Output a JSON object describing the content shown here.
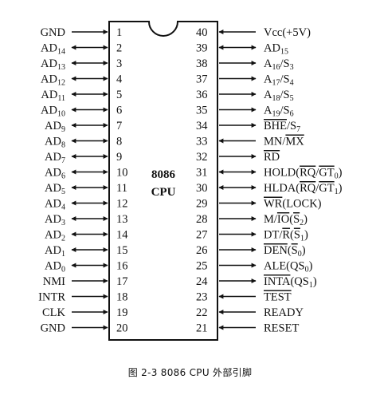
{
  "chip": {
    "line1": "8086",
    "line2": "CPU"
  },
  "left_pins": [
    {
      "num": "1",
      "dir": "in",
      "label": [
        {
          "t": "GND"
        }
      ]
    },
    {
      "num": "2",
      "dir": "bi",
      "label": [
        {
          "t": "AD"
        },
        {
          "t": "14",
          "s": "sub"
        }
      ]
    },
    {
      "num": "3",
      "dir": "bi",
      "label": [
        {
          "t": "AD"
        },
        {
          "t": "13",
          "s": "sub"
        }
      ]
    },
    {
      "num": "4",
      "dir": "bi",
      "label": [
        {
          "t": "AD"
        },
        {
          "t": "12",
          "s": "sub"
        }
      ]
    },
    {
      "num": "5",
      "dir": "bi",
      "label": [
        {
          "t": "AD"
        },
        {
          "t": "11",
          "s": "sub"
        }
      ]
    },
    {
      "num": "6",
      "dir": "bi",
      "label": [
        {
          "t": "AD"
        },
        {
          "t": "10",
          "s": "sub"
        }
      ]
    },
    {
      "num": "7",
      "dir": "bi",
      "label": [
        {
          "t": "AD"
        },
        {
          "t": "9",
          "s": "sub"
        }
      ]
    },
    {
      "num": "8",
      "dir": "bi",
      "label": [
        {
          "t": "AD"
        },
        {
          "t": "8",
          "s": "sub"
        }
      ]
    },
    {
      "num": "9",
      "dir": "bi",
      "label": [
        {
          "t": "AD"
        },
        {
          "t": "7",
          "s": "sub"
        }
      ]
    },
    {
      "num": "10",
      "dir": "bi",
      "label": [
        {
          "t": "AD"
        },
        {
          "t": "6",
          "s": "sub"
        }
      ]
    },
    {
      "num": "11",
      "dir": "bi",
      "label": [
        {
          "t": "AD"
        },
        {
          "t": "5",
          "s": "sub"
        }
      ]
    },
    {
      "num": "12",
      "dir": "bi",
      "label": [
        {
          "t": "AD"
        },
        {
          "t": "4",
          "s": "sub"
        }
      ]
    },
    {
      "num": "13",
      "dir": "bi",
      "label": [
        {
          "t": "AD"
        },
        {
          "t": "3",
          "s": "sub"
        }
      ]
    },
    {
      "num": "14",
      "dir": "bi",
      "label": [
        {
          "t": "AD"
        },
        {
          "t": "2",
          "s": "sub"
        }
      ]
    },
    {
      "num": "15",
      "dir": "bi",
      "label": [
        {
          "t": "AD"
        },
        {
          "t": "1",
          "s": "sub"
        }
      ]
    },
    {
      "num": "16",
      "dir": "bi",
      "label": [
        {
          "t": "AD"
        },
        {
          "t": "0",
          "s": "sub"
        }
      ]
    },
    {
      "num": "17",
      "dir": "in",
      "label": [
        {
          "t": "NMI"
        }
      ]
    },
    {
      "num": "18",
      "dir": "in",
      "label": [
        {
          "t": "INTR"
        }
      ]
    },
    {
      "num": "19",
      "dir": "in",
      "label": [
        {
          "t": "CLK"
        }
      ]
    },
    {
      "num": "20",
      "dir": "in",
      "label": [
        {
          "t": "GND"
        }
      ]
    }
  ],
  "right_pins": [
    {
      "num": "40",
      "dir": "in",
      "label": [
        {
          "t": "Vcc(+5V)"
        }
      ]
    },
    {
      "num": "39",
      "dir": "bi",
      "label": [
        {
          "t": "AD"
        },
        {
          "t": "15",
          "s": "sub"
        }
      ]
    },
    {
      "num": "38",
      "dir": "out",
      "label": [
        {
          "t": "A"
        },
        {
          "t": "16",
          "s": "sub"
        },
        {
          "t": "/S"
        },
        {
          "t": "3",
          "s": "sub"
        }
      ]
    },
    {
      "num": "37",
      "dir": "out",
      "label": [
        {
          "t": "A"
        },
        {
          "t": "17",
          "s": "sub"
        },
        {
          "t": "/S"
        },
        {
          "t": "4",
          "s": "sub"
        }
      ]
    },
    {
      "num": "36",
      "dir": "out",
      "label": [
        {
          "t": "A"
        },
        {
          "t": "18",
          "s": "sub"
        },
        {
          "t": "/S"
        },
        {
          "t": "5",
          "s": "sub"
        }
      ]
    },
    {
      "num": "35",
      "dir": "out",
      "label": [
        {
          "t": "A"
        },
        {
          "t": "19",
          "s": "sub"
        },
        {
          "t": "/S"
        },
        {
          "t": "6",
          "s": "sub"
        }
      ]
    },
    {
      "num": "34",
      "dir": "out",
      "label": [
        {
          "t": "BHE",
          "o": 1
        },
        {
          "t": "/S"
        },
        {
          "t": "7",
          "s": "sub"
        }
      ]
    },
    {
      "num": "33",
      "dir": "in",
      "label": [
        {
          "t": "MN/"
        },
        {
          "t": "MX",
          "o": 1
        }
      ]
    },
    {
      "num": "32",
      "dir": "out",
      "label": [
        {
          "t": "RD",
          "o": 1
        }
      ]
    },
    {
      "num": "31",
      "dir": "bi",
      "label": [
        {
          "t": "HOLD("
        },
        {
          "t": "RQ",
          "o": 1
        },
        {
          "t": "/"
        },
        {
          "t": "GT",
          "o": 1
        },
        {
          "t": "0",
          "s": "sub"
        },
        {
          "t": ")"
        }
      ]
    },
    {
      "num": "30",
      "dir": "bi",
      "label": [
        {
          "t": "HLDA("
        },
        {
          "t": "RQ",
          "o": 1
        },
        {
          "t": "/"
        },
        {
          "t": "GT",
          "o": 1
        },
        {
          "t": "1",
          "s": "sub"
        },
        {
          "t": ")"
        }
      ]
    },
    {
      "num": "29",
      "dir": "out",
      "label": [
        {
          "t": "WR",
          "o": 1
        },
        {
          "t": "(LOCK)"
        }
      ]
    },
    {
      "num": "28",
      "dir": "out",
      "label": [
        {
          "t": "M/"
        },
        {
          "t": "IO",
          "o": 1
        },
        {
          "t": "("
        },
        {
          "t": "S",
          "o": 1
        },
        {
          "t": "2",
          "s": "sub"
        },
        {
          "t": ")"
        }
      ]
    },
    {
      "num": "27",
      "dir": "out",
      "label": [
        {
          "t": "DT/"
        },
        {
          "t": "R",
          "o": 1
        },
        {
          "t": "("
        },
        {
          "t": "S",
          "o": 1
        },
        {
          "t": "1",
          "s": "sub"
        },
        {
          "t": ")"
        }
      ]
    },
    {
      "num": "26",
      "dir": "out",
      "label": [
        {
          "t": "DEN",
          "o": 1
        },
        {
          "t": "("
        },
        {
          "t": "S",
          "o": 1
        },
        {
          "t": "0",
          "s": "sub"
        },
        {
          "t": ")"
        }
      ]
    },
    {
      "num": "25",
      "dir": "out",
      "label": [
        {
          "t": "ALE(QS"
        },
        {
          "t": "0",
          "s": "sub"
        },
        {
          "t": ")"
        }
      ]
    },
    {
      "num": "24",
      "dir": "out",
      "label": [
        {
          "t": "INTA",
          "o": 1
        },
        {
          "t": "(QS"
        },
        {
          "t": "1",
          "s": "sub"
        },
        {
          "t": ")"
        }
      ]
    },
    {
      "num": "23",
      "dir": "in",
      "label": [
        {
          "t": "TEST",
          "o": 1
        }
      ]
    },
    {
      "num": "22",
      "dir": "in",
      "label": [
        {
          "t": "READY"
        }
      ]
    },
    {
      "num": "21",
      "dir": "in",
      "label": [
        {
          "t": "RESET"
        }
      ]
    }
  ],
  "caption": "图 2-3   8086 CPU 外部引脚"
}
